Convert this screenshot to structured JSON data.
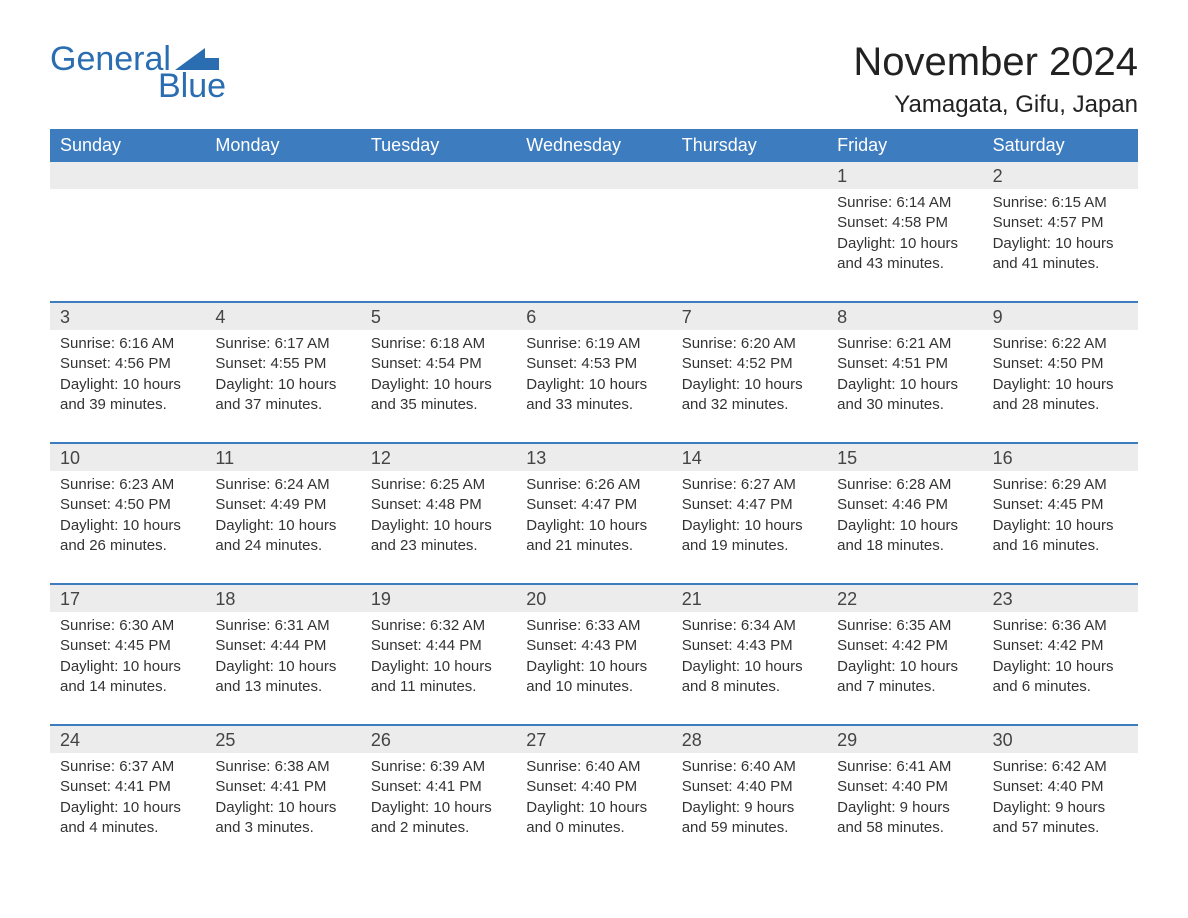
{
  "logo": {
    "line1a": "General",
    "line2": "Blue"
  },
  "title": "November 2024",
  "location": "Yamagata, Gifu, Japan",
  "accent_color": "#3d7cbf",
  "logo_color": "#2a6db0",
  "header_bg": "#3d7cbf",
  "daynum_bg": "#ececec",
  "text_color": "#333333",
  "day_headers": [
    "Sunday",
    "Monday",
    "Tuesday",
    "Wednesday",
    "Thursday",
    "Friday",
    "Saturday"
  ],
  "weeks": [
    {
      "days": [
        null,
        null,
        null,
        null,
        null,
        {
          "n": "1",
          "sunrise": "Sunrise: 6:14 AM",
          "sunset": "Sunset: 4:58 PM",
          "daylight": "Daylight: 10 hours and 43 minutes."
        },
        {
          "n": "2",
          "sunrise": "Sunrise: 6:15 AM",
          "sunset": "Sunset: 4:57 PM",
          "daylight": "Daylight: 10 hours and 41 minutes."
        }
      ]
    },
    {
      "days": [
        {
          "n": "3",
          "sunrise": "Sunrise: 6:16 AM",
          "sunset": "Sunset: 4:56 PM",
          "daylight": "Daylight: 10 hours and 39 minutes."
        },
        {
          "n": "4",
          "sunrise": "Sunrise: 6:17 AM",
          "sunset": "Sunset: 4:55 PM",
          "daylight": "Daylight: 10 hours and 37 minutes."
        },
        {
          "n": "5",
          "sunrise": "Sunrise: 6:18 AM",
          "sunset": "Sunset: 4:54 PM",
          "daylight": "Daylight: 10 hours and 35 minutes."
        },
        {
          "n": "6",
          "sunrise": "Sunrise: 6:19 AM",
          "sunset": "Sunset: 4:53 PM",
          "daylight": "Daylight: 10 hours and 33 minutes."
        },
        {
          "n": "7",
          "sunrise": "Sunrise: 6:20 AM",
          "sunset": "Sunset: 4:52 PM",
          "daylight": "Daylight: 10 hours and 32 minutes."
        },
        {
          "n": "8",
          "sunrise": "Sunrise: 6:21 AM",
          "sunset": "Sunset: 4:51 PM",
          "daylight": "Daylight: 10 hours and 30 minutes."
        },
        {
          "n": "9",
          "sunrise": "Sunrise: 6:22 AM",
          "sunset": "Sunset: 4:50 PM",
          "daylight": "Daylight: 10 hours and 28 minutes."
        }
      ]
    },
    {
      "days": [
        {
          "n": "10",
          "sunrise": "Sunrise: 6:23 AM",
          "sunset": "Sunset: 4:50 PM",
          "daylight": "Daylight: 10 hours and 26 minutes."
        },
        {
          "n": "11",
          "sunrise": "Sunrise: 6:24 AM",
          "sunset": "Sunset: 4:49 PM",
          "daylight": "Daylight: 10 hours and 24 minutes."
        },
        {
          "n": "12",
          "sunrise": "Sunrise: 6:25 AM",
          "sunset": "Sunset: 4:48 PM",
          "daylight": "Daylight: 10 hours and 23 minutes."
        },
        {
          "n": "13",
          "sunrise": "Sunrise: 6:26 AM",
          "sunset": "Sunset: 4:47 PM",
          "daylight": "Daylight: 10 hours and 21 minutes."
        },
        {
          "n": "14",
          "sunrise": "Sunrise: 6:27 AM",
          "sunset": "Sunset: 4:47 PM",
          "daylight": "Daylight: 10 hours and 19 minutes."
        },
        {
          "n": "15",
          "sunrise": "Sunrise: 6:28 AM",
          "sunset": "Sunset: 4:46 PM",
          "daylight": "Daylight: 10 hours and 18 minutes."
        },
        {
          "n": "16",
          "sunrise": "Sunrise: 6:29 AM",
          "sunset": "Sunset: 4:45 PM",
          "daylight": "Daylight: 10 hours and 16 minutes."
        }
      ]
    },
    {
      "days": [
        {
          "n": "17",
          "sunrise": "Sunrise: 6:30 AM",
          "sunset": "Sunset: 4:45 PM",
          "daylight": "Daylight: 10 hours and 14 minutes."
        },
        {
          "n": "18",
          "sunrise": "Sunrise: 6:31 AM",
          "sunset": "Sunset: 4:44 PM",
          "daylight": "Daylight: 10 hours and 13 minutes."
        },
        {
          "n": "19",
          "sunrise": "Sunrise: 6:32 AM",
          "sunset": "Sunset: 4:44 PM",
          "daylight": "Daylight: 10 hours and 11 minutes."
        },
        {
          "n": "20",
          "sunrise": "Sunrise: 6:33 AM",
          "sunset": "Sunset: 4:43 PM",
          "daylight": "Daylight: 10 hours and 10 minutes."
        },
        {
          "n": "21",
          "sunrise": "Sunrise: 6:34 AM",
          "sunset": "Sunset: 4:43 PM",
          "daylight": "Daylight: 10 hours and 8 minutes."
        },
        {
          "n": "22",
          "sunrise": "Sunrise: 6:35 AM",
          "sunset": "Sunset: 4:42 PM",
          "daylight": "Daylight: 10 hours and 7 minutes."
        },
        {
          "n": "23",
          "sunrise": "Sunrise: 6:36 AM",
          "sunset": "Sunset: 4:42 PM",
          "daylight": "Daylight: 10 hours and 6 minutes."
        }
      ]
    },
    {
      "days": [
        {
          "n": "24",
          "sunrise": "Sunrise: 6:37 AM",
          "sunset": "Sunset: 4:41 PM",
          "daylight": "Daylight: 10 hours and 4 minutes."
        },
        {
          "n": "25",
          "sunrise": "Sunrise: 6:38 AM",
          "sunset": "Sunset: 4:41 PM",
          "daylight": "Daylight: 10 hours and 3 minutes."
        },
        {
          "n": "26",
          "sunrise": "Sunrise: 6:39 AM",
          "sunset": "Sunset: 4:41 PM",
          "daylight": "Daylight: 10 hours and 2 minutes."
        },
        {
          "n": "27",
          "sunrise": "Sunrise: 6:40 AM",
          "sunset": "Sunset: 4:40 PM",
          "daylight": "Daylight: 10 hours and 0 minutes."
        },
        {
          "n": "28",
          "sunrise": "Sunrise: 6:40 AM",
          "sunset": "Sunset: 4:40 PM",
          "daylight": "Daylight: 9 hours and 59 minutes."
        },
        {
          "n": "29",
          "sunrise": "Sunrise: 6:41 AM",
          "sunset": "Sunset: 4:40 PM",
          "daylight": "Daylight: 9 hours and 58 minutes."
        },
        {
          "n": "30",
          "sunrise": "Sunrise: 6:42 AM",
          "sunset": "Sunset: 4:40 PM",
          "daylight": "Daylight: 9 hours and 57 minutes."
        }
      ]
    }
  ]
}
